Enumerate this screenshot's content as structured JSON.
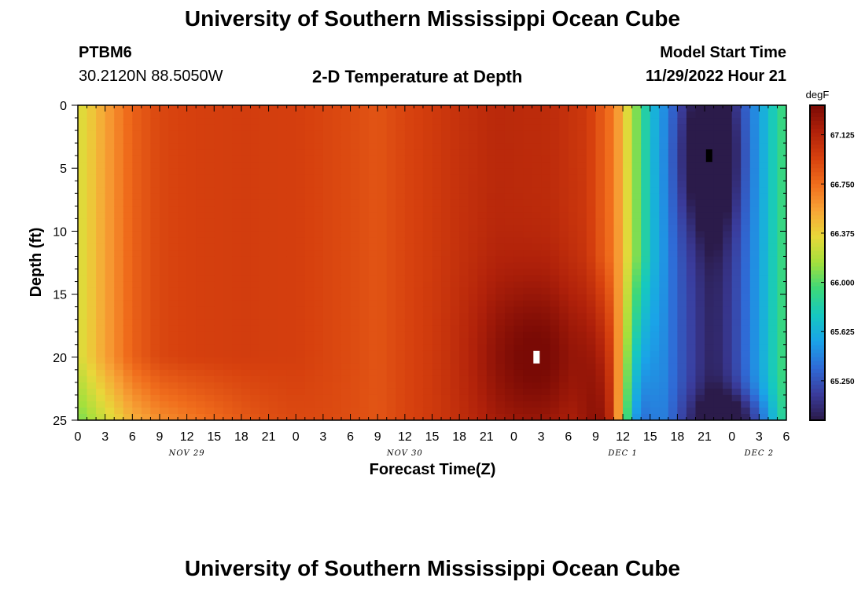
{
  "header": {
    "title": "University of Southern Mississippi Ocean Cube",
    "station_id": "PTBM6",
    "coordinates": "30.2120N  88.5050W",
    "plot_title": "2-D Temperature at Depth",
    "model_start_label": "Model Start Time",
    "model_start_value": "11/29/2022 Hour 21"
  },
  "footer": {
    "title": "University of Southern Mississippi Ocean Cube"
  },
  "colors": {
    "background": "#ffffff",
    "text": "#000000",
    "min_marker": "#000000",
    "max_marker": "#ffffff"
  },
  "chart_data": {
    "type": "heatmap",
    "xlabel": "Forecast Time(Z)",
    "ylabel": "Depth (ft)",
    "x_tick_labels": [
      "0",
      "3",
      "6",
      "9",
      "12",
      "15",
      "18",
      "21",
      "0",
      "3",
      "6",
      "9",
      "12",
      "15",
      "18",
      "21",
      "0",
      "3",
      "6",
      "9",
      "12",
      "15",
      "18",
      "21",
      "0",
      "3",
      "6"
    ],
    "x_range_hours": [
      0,
      78
    ],
    "date_labels": [
      {
        "label": "NOV 29",
        "hour": 12
      },
      {
        "label": "NOV 30",
        "hour": 36
      },
      {
        "label": "DEC 1",
        "hour": 60
      },
      {
        "label": "DEC 2",
        "hour": 75
      }
    ],
    "y_ticks": [
      0,
      5,
      10,
      15,
      20,
      25
    ],
    "y_range": [
      0,
      25
    ],
    "y_inverted": true,
    "colorbar": {
      "unit": "degF",
      "ticks": [
        "67.125",
        "66.750",
        "66.375",
        "66.000",
        "65.625",
        "65.250"
      ],
      "range": [
        64.95,
        67.35
      ],
      "stops": [
        "#2b1b4a",
        "#3a3c9c",
        "#2f6bd6",
        "#1aa3e8",
        "#16c8c0",
        "#3cd87a",
        "#a4e03c",
        "#e8d83a",
        "#f7a336",
        "#f06d1c",
        "#d6400e",
        "#b0210a",
        "#7a0a05"
      ]
    },
    "time_profile_degF": [
      [
        0,
        66.28
      ],
      [
        3,
        66.55
      ],
      [
        6,
        66.8
      ],
      [
        9,
        66.92
      ],
      [
        12,
        66.95
      ],
      [
        18,
        66.97
      ],
      [
        24,
        66.96
      ],
      [
        30,
        66.9
      ],
      [
        33,
        66.86
      ],
      [
        36,
        66.93
      ],
      [
        42,
        67.04
      ],
      [
        46,
        67.1
      ],
      [
        52,
        67.08
      ],
      [
        56,
        67.0
      ],
      [
        59,
        66.7
      ],
      [
        61,
        66.2
      ],
      [
        63,
        65.7
      ],
      [
        66,
        65.3
      ],
      [
        69,
        65.05
      ],
      [
        70,
        65.0
      ],
      [
        72,
        65.15
      ],
      [
        75,
        65.55
      ],
      [
        78,
        66.0
      ]
    ],
    "markers": [
      {
        "label": "min",
        "hour": 69.5,
        "depth_ft": 4.0,
        "value_degF": 64.98
      },
      {
        "label": "max",
        "hour": 50.5,
        "depth_ft": 20.0,
        "value_degF": 67.32
      }
    ]
  }
}
